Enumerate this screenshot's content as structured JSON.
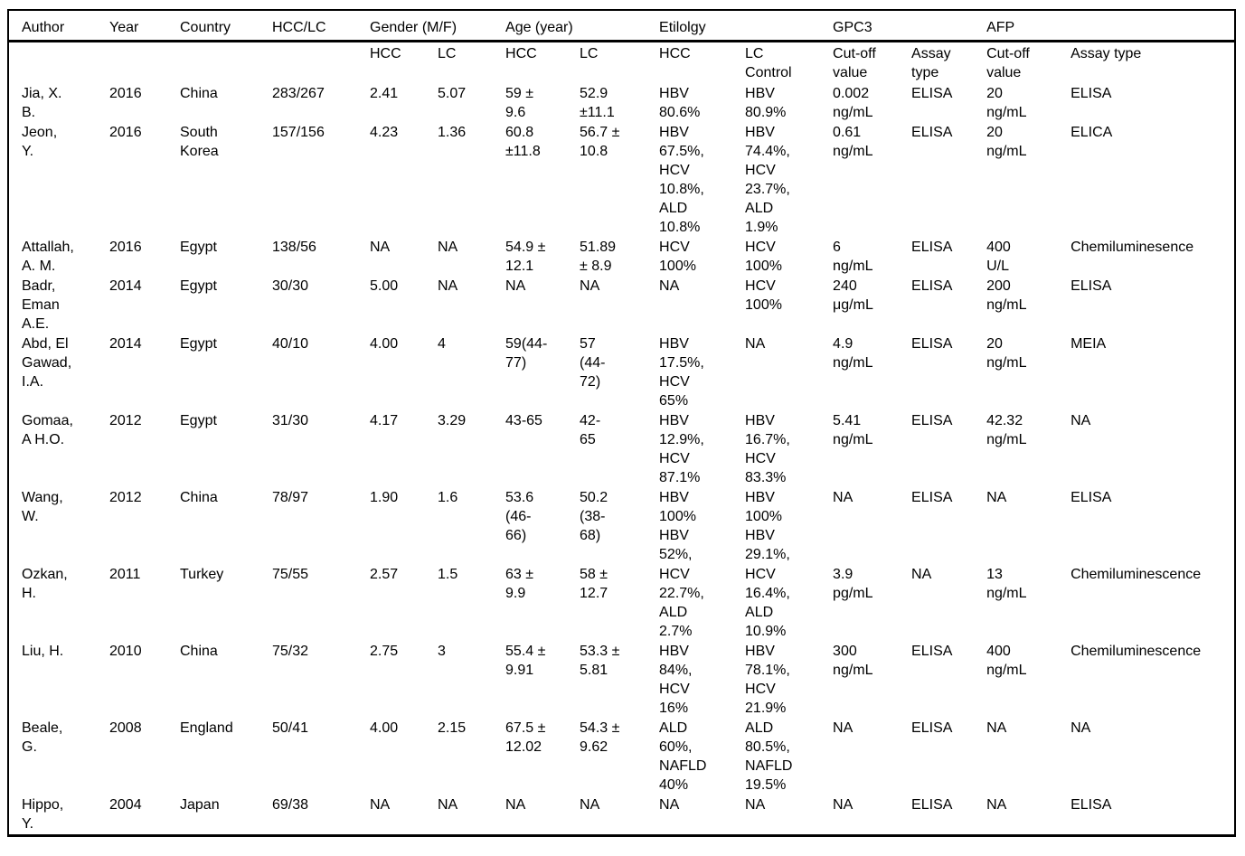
{
  "table": {
    "title_semantic": "Characteristics of included studies",
    "text_color": "#000000",
    "background_color": "#ffffff",
    "group_headers": [
      {
        "label": "Author",
        "colspan": 1
      },
      {
        "label": "Year",
        "colspan": 1
      },
      {
        "label": "Country",
        "colspan": 1
      },
      {
        "label": "HCC/LC",
        "colspan": 1
      },
      {
        "label": "Gender (M/F)",
        "colspan": 2
      },
      {
        "label": "Age (year)",
        "colspan": 2
      },
      {
        "label": "Etilolgy",
        "colspan": 2
      },
      {
        "label": "GPC3",
        "colspan": 2
      },
      {
        "label": "AFP",
        "colspan": 2
      }
    ],
    "sub_headers": [
      "",
      "",
      "",
      "",
      "HCC",
      "LC",
      "HCC",
      "LC",
      "HCC",
      "LC\nControl",
      "Cut-off\nvalue",
      "Assay\ntype",
      "Cut-off\nvalue",
      "Assay type"
    ],
    "rows": [
      [
        "Jia, X.\nB.",
        "2016",
        "China",
        "283/267",
        "2.41",
        "5.07",
        "59 ±\n9.6",
        "52.9\n±11.1",
        "HBV\n80.6%",
        "HBV\n80.9%",
        "0.002\nng/mL",
        "ELISA",
        "20\nng/mL",
        "ELISA"
      ],
      [
        "Jeon,\nY.",
        "2016",
        "South\nKorea",
        "157/156",
        "4.23",
        "1.36",
        "60.8\n±11.8",
        "56.7 ±\n10.8",
        "HBV\n67.5%,\nHCV\n10.8%,\nALD\n10.8%",
        "HBV\n74.4%,\nHCV\n23.7%,\nALD\n1.9%",
        "0.61\nng/mL",
        "ELISA",
        "20\nng/mL",
        "ELICA"
      ],
      [
        "Attallah,\nA. M.",
        "2016",
        "Egypt",
        "138/56",
        "NA",
        "NA",
        "54.9 ±\n12.1",
        "51.89\n± 8.9",
        "HCV\n100%",
        "HCV\n100%",
        "6\nng/mL",
        "ELISA",
        "400\nU/L",
        "Chemiluminesence"
      ],
      [
        "Badr,\nEman\nA.E.",
        "2014",
        "Egypt",
        "30/30",
        "5.00",
        "NA",
        "NA",
        "NA",
        "NA",
        "HCV\n100%",
        "240\nμg/mL",
        "ELISA",
        "200\nng/mL",
        "ELISA"
      ],
      [
        "Abd, El\nGawad,\nI.A.",
        "2014",
        "Egypt",
        "40/10",
        "4.00",
        "4",
        "59(44-\n77)",
        "57\n(44-\n72)",
        "HBV\n17.5%,\nHCV\n65%",
        "NA",
        "4.9\nng/mL",
        "ELISA",
        "20\nng/mL",
        "MEIA"
      ],
      [
        "Gomaa,\nA H.O.",
        "2012",
        "Egypt",
        "31/30",
        "4.17",
        "3.29",
        "43-65",
        "42-\n65",
        "HBV\n12.9%,\nHCV\n87.1%",
        "HBV\n16.7%,\nHCV\n83.3%",
        "5.41\nng/mL",
        "ELISA",
        "42.32\nng/mL",
        "NA"
      ],
      [
        "Wang,\nW.",
        "2012",
        "China",
        "78/97",
        "1.90",
        "1.6",
        "53.6\n(46-\n66)",
        "50.2\n(38-\n68)",
        "HBV\n100%\nHBV\n52%,",
        "HBV\n100%\nHBV\n29.1%,",
        "NA",
        "ELISA",
        "NA",
        "ELISA"
      ],
      [
        "Ozkan,\nH.",
        "2011",
        "Turkey",
        "75/55",
        "2.57",
        "1.5",
        "63 ±\n9.9",
        "58 ±\n12.7",
        "HCV\n22.7%,\nALD\n2.7%",
        "HCV\n16.4%,\nALD\n10.9%",
        "3.9\npg/mL",
        "NA",
        "13\nng/mL",
        "Chemiluminescence"
      ],
      [
        "Liu, H.",
        "2010",
        "China",
        "75/32",
        "2.75",
        "3",
        "55.4 ±\n9.91",
        "53.3 ±\n5.81",
        "HBV\n84%,\nHCV\n16%",
        "HBV\n78.1%,\nHCV\n21.9%",
        "300\nng/mL",
        "ELISA",
        "400\nng/mL",
        "Chemiluminescence"
      ],
      [
        "Beale,\nG.",
        "2008",
        "England",
        "50/41",
        "4.00",
        "2.15",
        "67.5 ±\n12.02",
        "54.3 ±\n9.62",
        "ALD\n60%,\nNAFLD\n40%",
        "ALD\n80.5%,\nNAFLD\n19.5%",
        "NA",
        "ELISA",
        "NA",
        "NA"
      ],
      [
        "Hippo,\nY.",
        "2004",
        "Japan",
        "69/38",
        "NA",
        "NA",
        "NA",
        "NA",
        "NA",
        "NA",
        "NA",
        "ELISA",
        "NA",
        "ELISA"
      ]
    ]
  }
}
